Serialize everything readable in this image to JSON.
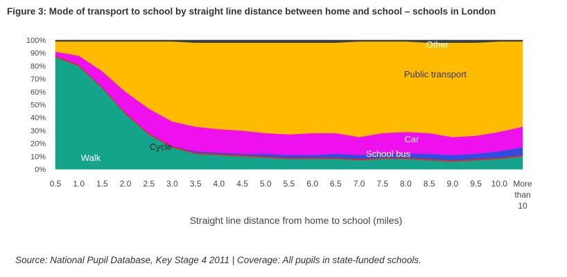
{
  "figure": {
    "title": "Figure 3: Mode of transport to school by straight line distance between home and school – schools in London",
    "source": "Source: National Pupil Database, Key Stage 4 2011 | Coverage: All pupils in state-funded schools."
  },
  "chart_data": {
    "type": "area",
    "stacked": true,
    "xlabel": "Straight line distance from home to school (miles)",
    "ylabel": "",
    "ylim": [
      0,
      100
    ],
    "y_unit": "%",
    "yticks": [
      "0%",
      "10%",
      "20%",
      "30%",
      "40%",
      "50%",
      "60%",
      "70%",
      "80%",
      "90%",
      "100%"
    ],
    "categories": [
      "0.5",
      "1.0",
      "1.5",
      "2.0",
      "2.5",
      "3.0",
      "3.5",
      "4.0",
      "4.5",
      "5.0",
      "5.5",
      "6.0",
      "6.5",
      "7.0",
      "7.5",
      "8.0",
      "8.5",
      "9.0",
      "9.5",
      "10.0",
      "More than 10"
    ],
    "category_lines": [
      [
        "0.5"
      ],
      [
        "1.0"
      ],
      [
        "1.5"
      ],
      [
        "2.0"
      ],
      [
        "2.5"
      ],
      [
        "3.0"
      ],
      [
        "3.5"
      ],
      [
        "4.0"
      ],
      [
        "4.5"
      ],
      [
        "5.0"
      ],
      [
        "5.5"
      ],
      [
        "6.0"
      ],
      [
        "6.5"
      ],
      [
        "7.0"
      ],
      [
        "7.5"
      ],
      [
        "8.0"
      ],
      [
        "8.5"
      ],
      [
        "9.0"
      ],
      [
        "9.5"
      ],
      [
        "10.0"
      ],
      [
        "More",
        "than",
        "10"
      ]
    ],
    "series": [
      {
        "name": "Walk",
        "color": "#14a38b",
        "values": [
          87,
          80,
          63,
          43,
          27,
          17,
          12,
          11,
          10,
          9,
          8,
          8,
          8,
          7,
          8,
          8,
          7,
          6,
          7,
          8,
          10
        ]
      },
      {
        "name": "Cycle",
        "color": "#e8261e",
        "values": [
          1,
          1,
          1,
          1,
          1,
          1,
          1,
          1,
          1,
          1,
          1,
          1,
          1,
          1,
          1,
          1,
          1,
          1,
          1,
          1,
          1
        ]
      },
      {
        "name": "School bus",
        "color": "#2f4ee0",
        "values": [
          0,
          0,
          0,
          0,
          0,
          0,
          1,
          1,
          1,
          2,
          2,
          2,
          3,
          3,
          3,
          3,
          4,
          4,
          4,
          5,
          6
        ]
      },
      {
        "name": "Car",
        "color": "#ee11ee",
        "values": [
          3,
          7,
          12,
          16,
          19,
          19,
          19,
          18,
          18,
          16,
          16,
          17,
          16,
          14,
          16,
          17,
          16,
          14,
          14,
          15,
          16
        ]
      },
      {
        "name": "Public transport",
        "color": "#ffbb00",
        "values": [
          8,
          11,
          23,
          39,
          52,
          62,
          65,
          67,
          68,
          70,
          71,
          70,
          70,
          74,
          71,
          70,
          70,
          73,
          72,
          70,
          66
        ]
      },
      {
        "name": "Other",
        "color": "#3c3f44",
        "values": [
          1,
          1,
          1,
          1,
          1,
          1,
          2,
          2,
          2,
          2,
          2,
          2,
          2,
          1,
          1,
          1,
          2,
          2,
          2,
          1,
          1
        ]
      }
    ],
    "grid": false,
    "legend": "none"
  }
}
